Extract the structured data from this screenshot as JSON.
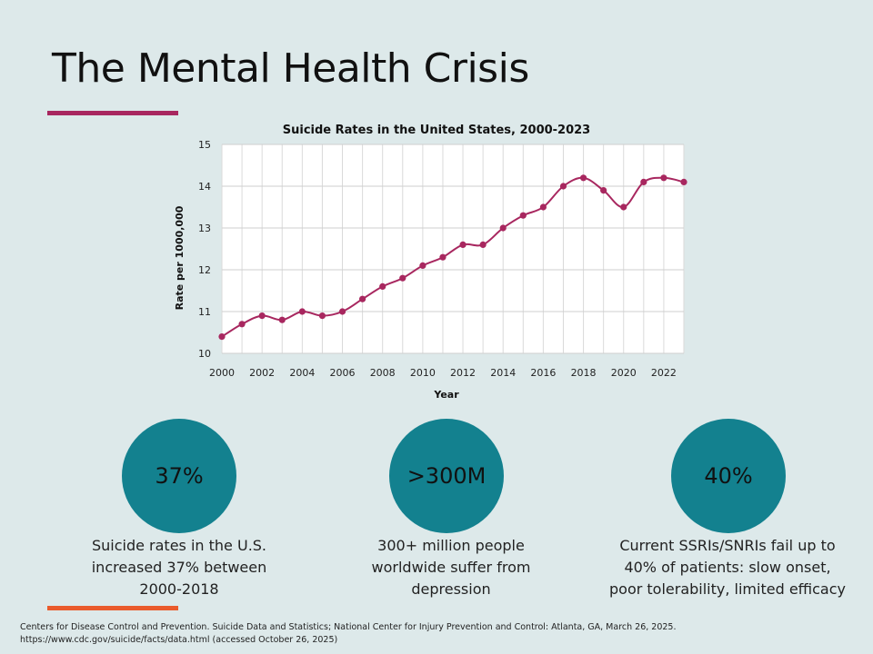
{
  "slide": {
    "title": "The Mental Health Crisis",
    "citation_line1": "Centers for Disease Control and Prevention. Suicide Data and Statistics; National Center for Injury Prevention and Control: Atlanta, GA, March 26, 2025.",
    "citation_line2": "https://www.cdc.gov/suicide/facts/data.html (accessed October 26, 2025)"
  },
  "stats": [
    {
      "value": "37%",
      "line1": "Suicide rates in the U.S.",
      "line2": "increased 37% between",
      "line3": "2000-2018"
    },
    {
      "value": ">300M",
      "line1": "300+ million people",
      "line2": "worldwide suffer from",
      "line3": "depression"
    },
    {
      "value": "40%",
      "line1": "Current SSRIs/SNRIs fail up to",
      "line2": "40% of patients: slow onset,",
      "line3": "poor tolerability, limited efficacy"
    }
  ],
  "colors": {
    "accent_magenta": "#a8275f",
    "accent_orange": "#ea5b2c",
    "circle_teal": "#13818f",
    "line": "#a8275f",
    "background": "#dde9ea"
  },
  "chart_data": {
    "type": "line",
    "title": "Suicide Rates in the United States, 2000-2023",
    "xlabel": "Year",
    "ylabel": "Rate per 1000,000",
    "x": [
      2000,
      2001,
      2002,
      2003,
      2004,
      2005,
      2006,
      2007,
      2008,
      2009,
      2010,
      2011,
      2012,
      2013,
      2014,
      2015,
      2016,
      2017,
      2018,
      2019,
      2020,
      2021,
      2022,
      2023
    ],
    "y": [
      10.4,
      10.7,
      10.9,
      10.8,
      11.0,
      10.9,
      11.0,
      11.3,
      11.6,
      11.8,
      12.1,
      12.3,
      12.6,
      12.6,
      13.0,
      13.3,
      13.5,
      14.0,
      14.2,
      13.9,
      13.5,
      14.1,
      14.2,
      14.1
    ],
    "xticks": [
      "2000",
      "2002",
      "2004",
      "2006",
      "2008",
      "2010",
      "2012",
      "2014",
      "2016",
      "2018",
      "2020",
      "2022"
    ],
    "yticks": [
      "10",
      "11",
      "12",
      "13",
      "14",
      "15"
    ],
    "xlim": [
      2000,
      2023
    ],
    "ylim": [
      10,
      15
    ],
    "grid": true,
    "smooth": true
  }
}
